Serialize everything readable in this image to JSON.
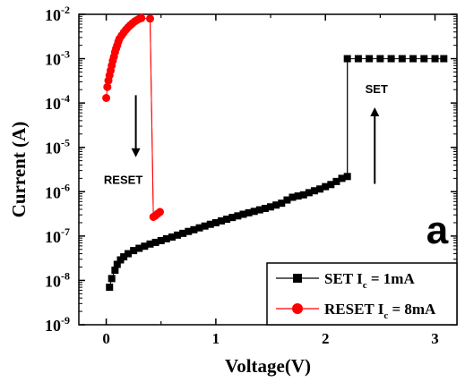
{
  "chart_data": {
    "type": "scatter",
    "xlabel": "Voltage(V)",
    "ylabel": "Current (A)",
    "xlim": [
      -0.25,
      3.2
    ],
    "ylim_log10": [
      -9,
      -2
    ],
    "y_scale": "log",
    "grid": false,
    "legend_position": "bottom-right",
    "x_ticks": [
      {
        "value": 0,
        "label": "0"
      },
      {
        "value": 1,
        "label": "1"
      },
      {
        "value": 2,
        "label": "2"
      },
      {
        "value": 3,
        "label": "3"
      }
    ],
    "y_ticks": [
      {
        "exp": -2,
        "base": "10",
        "sup": "-2"
      },
      {
        "exp": -3,
        "base": "10",
        "sup": "-3"
      },
      {
        "exp": -4,
        "base": "10",
        "sup": "-4"
      },
      {
        "exp": -5,
        "base": "10",
        "sup": "-5"
      },
      {
        "exp": -6,
        "base": "10",
        "sup": "-6"
      },
      {
        "exp": -7,
        "base": "10",
        "sup": "-7"
      },
      {
        "exp": -8,
        "base": "10",
        "sup": "-8"
      },
      {
        "exp": -9,
        "base": "10",
        "sup": "-9"
      }
    ],
    "panel_label": "a",
    "annotations": [
      {
        "text": "RESET",
        "arrow": "down",
        "x": 0.27,
        "y_from": 0.00015,
        "y_to": 6e-06
      },
      {
        "text": "SET",
        "arrow": "up",
        "x": 2.45,
        "y_from": 1.5e-06,
        "y_to": 8e-05
      }
    ],
    "series": [
      {
        "name_main": "SET I",
        "name_sub": "c",
        "name_rest": " = 1mA",
        "marker": "square",
        "color": "#000000",
        "points": [
          [
            0.03,
            7e-09
          ],
          [
            0.05,
            1.1e-08
          ],
          [
            0.08,
            1.7e-08
          ],
          [
            0.1,
            2.3e-08
          ],
          [
            0.13,
            2.9e-08
          ],
          [
            0.16,
            3.4e-08
          ],
          [
            0.2,
            4e-08
          ],
          [
            0.25,
            4.7e-08
          ],
          [
            0.3,
            5.3e-08
          ],
          [
            0.35,
            5.9e-08
          ],
          [
            0.4,
            6.6e-08
          ],
          [
            0.45,
            7.2e-08
          ],
          [
            0.5,
            7.9e-08
          ],
          [
            0.55,
            8.7e-08
          ],
          [
            0.6,
            9.5e-08
          ],
          [
            0.65,
            1.05e-07
          ],
          [
            0.7,
            1.15e-07
          ],
          [
            0.75,
            1.27e-07
          ],
          [
            0.8,
            1.39e-07
          ],
          [
            0.85,
            1.53e-07
          ],
          [
            0.9,
            1.68e-07
          ],
          [
            0.95,
            1.84e-07
          ],
          [
            1.0,
            2e-07
          ],
          [
            1.05,
            2.2e-07
          ],
          [
            1.1,
            2.4e-07
          ],
          [
            1.15,
            2.62e-07
          ],
          [
            1.2,
            2.85e-07
          ],
          [
            1.25,
            3.1e-07
          ],
          [
            1.3,
            3.35e-07
          ],
          [
            1.35,
            3.6e-07
          ],
          [
            1.4,
            3.9e-07
          ],
          [
            1.45,
            4.2e-07
          ],
          [
            1.5,
            4.55e-07
          ],
          [
            1.55,
            5e-07
          ],
          [
            1.6,
            5.5e-07
          ],
          [
            1.65,
            6.5e-07
          ],
          [
            1.7,
            7.5e-07
          ],
          [
            1.75,
            8e-07
          ],
          [
            1.8,
            8.5e-07
          ],
          [
            1.85,
            9.5e-07
          ],
          [
            1.9,
            1.05e-06
          ],
          [
            1.95,
            1.15e-06
          ],
          [
            2.0,
            1.3e-06
          ],
          [
            2.05,
            1.45e-06
          ],
          [
            2.1,
            1.7e-06
          ],
          [
            2.15,
            2e-06
          ],
          [
            2.2,
            2.2e-06
          ],
          [
            2.2,
            0.001
          ],
          [
            2.3,
            0.001
          ],
          [
            2.4,
            0.001
          ],
          [
            2.5,
            0.001
          ],
          [
            2.6,
            0.001
          ],
          [
            2.7,
            0.001
          ],
          [
            2.8,
            0.001
          ],
          [
            2.9,
            0.001
          ],
          [
            3.0,
            0.001
          ],
          [
            3.08,
            0.001
          ]
        ],
        "line": [
          [
            2.2,
            2.2e-06
          ],
          [
            2.2,
            0.001
          ]
        ]
      },
      {
        "name_main": "RESET I",
        "name_sub": "c",
        "name_rest": " = 8mA",
        "marker": "circle",
        "color": "#ff0000",
        "points": [
          [
            0.0,
            0.00013
          ],
          [
            0.01,
            0.00023
          ],
          [
            0.02,
            0.00032
          ],
          [
            0.03,
            0.00042
          ],
          [
            0.04,
            0.00054
          ],
          [
            0.05,
            0.0007
          ],
          [
            0.06,
            0.0009
          ],
          [
            0.07,
            0.0011
          ],
          [
            0.08,
            0.0014
          ],
          [
            0.09,
            0.0017
          ],
          [
            0.1,
            0.002
          ],
          [
            0.11,
            0.0024
          ],
          [
            0.12,
            0.0028
          ],
          [
            0.14,
            0.0033
          ],
          [
            0.16,
            0.0039
          ],
          [
            0.18,
            0.0045
          ],
          [
            0.2,
            0.0051
          ],
          [
            0.22,
            0.0057
          ],
          [
            0.24,
            0.0063
          ],
          [
            0.26,
            0.0069
          ],
          [
            0.28,
            0.0074
          ],
          [
            0.3,
            0.0079
          ],
          [
            0.32,
            0.0082
          ],
          [
            0.4,
            0.008
          ],
          [
            0.43,
            2.7e-07
          ],
          [
            0.45,
            2.9e-07
          ],
          [
            0.47,
            3.2e-07
          ],
          [
            0.49,
            3.5e-07
          ]
        ],
        "line": [
          [
            0.4,
            0.008
          ],
          [
            0.43,
            2.7e-07
          ]
        ]
      }
    ]
  }
}
